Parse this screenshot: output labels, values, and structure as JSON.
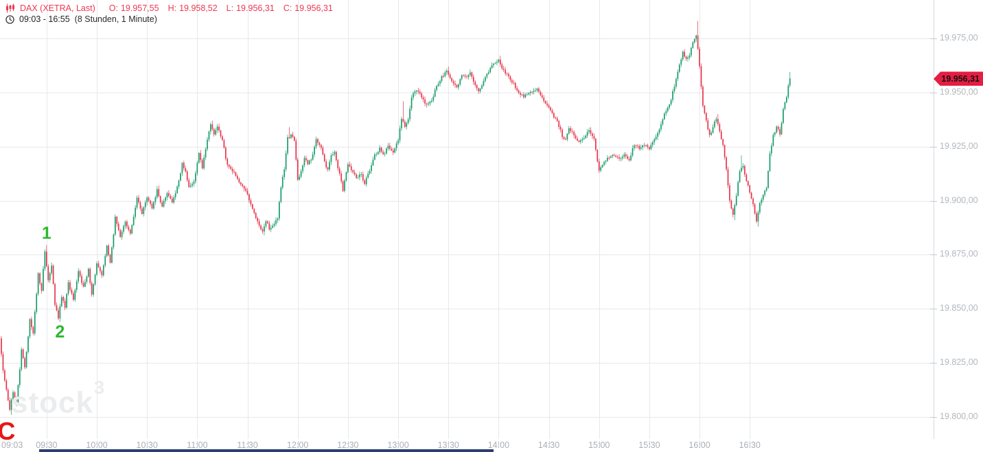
{
  "header": {
    "symbol": "DAX (XETRA, Last)",
    "ohlc": [
      {
        "label": "O:",
        "value": "19.957,55"
      },
      {
        "label": "H:",
        "value": "19.958,52"
      },
      {
        "label": "L:",
        "value": "19.956,31"
      },
      {
        "label": "C:",
        "value": "19.956,31"
      }
    ],
    "time_range": "09:03 - 16:55",
    "interval": "(8 Stunden, 1 Minute)",
    "accent_color": "#ec3850"
  },
  "price_tag": {
    "value": "19.956,31",
    "color": "#e51d42"
  },
  "watermark": {
    "text": "stock",
    "sup": "3"
  },
  "colors": {
    "up": "#169b68",
    "down": "#e73349",
    "grid": "#e6e8eb",
    "axis_line": "#d6d9dc",
    "tick": "#c4c8cd"
  },
  "chart_data": {
    "type": "candlestick",
    "title": "DAX (XETRA, Last) 1-Minute intraday",
    "interval_minutes": 1,
    "session_start": "09:03",
    "session_end": "16:55",
    "last_price": 19956.31,
    "last_ohlc": {
      "open": 19957.55,
      "high": 19958.52,
      "low": 19956.31,
      "close": 19956.31
    },
    "y_axis": {
      "min": 19800,
      "max": 19975,
      "tick_step": 25,
      "labels": [
        "19.975,00",
        "19.950,00",
        "19.925,00",
        "19.900,00",
        "19.875,00",
        "19.850,00",
        "19.825,00",
        "19.800,00"
      ],
      "label_values": [
        19975,
        19950,
        19925,
        19900,
        19875,
        19850,
        19825,
        19800
      ]
    },
    "x_axis": {
      "labels": [
        {
          "text": "09:03",
          "t": 0
        },
        {
          "text": "09:30",
          "t": 27
        },
        {
          "text": "10:00",
          "t": 57
        },
        {
          "text": "10:30",
          "t": 87
        },
        {
          "text": "11:00",
          "t": 117
        },
        {
          "text": "11:30",
          "t": 147
        },
        {
          "text": "12:00",
          "t": 177
        },
        {
          "text": "12:30",
          "t": 207
        },
        {
          "text": "13:00",
          "t": 237
        },
        {
          "text": "13:30",
          "t": 267
        },
        {
          "text": "14:00",
          "t": 297
        },
        {
          "text": "14:30",
          "t": 327
        },
        {
          "text": "15:00",
          "t": 357
        },
        {
          "text": "15:30",
          "t": 387
        },
        {
          "text": "16:00",
          "t": 417
        },
        {
          "text": "16:30",
          "t": 447
        }
      ],
      "gridline_ts": [
        27,
        57,
        87,
        117,
        147,
        177,
        207,
        237,
        267,
        297,
        327,
        357,
        387,
        417,
        447
      ]
    },
    "price_path_waypoints": [
      [
        0,
        19836
      ],
      [
        2,
        19822
      ],
      [
        4,
        19812
      ],
      [
        6,
        19803
      ],
      [
        8,
        19812
      ],
      [
        10,
        19806
      ],
      [
        13,
        19831
      ],
      [
        15,
        19823
      ],
      [
        18,
        19845
      ],
      [
        20,
        19839
      ],
      [
        23,
        19866
      ],
      [
        25,
        19859
      ],
      [
        27,
        19877
      ],
      [
        29,
        19863
      ],
      [
        31,
        19870
      ],
      [
        33,
        19852
      ],
      [
        35,
        19846
      ],
      [
        37,
        19856
      ],
      [
        39,
        19851
      ],
      [
        41,
        19862
      ],
      [
        44,
        19854
      ],
      [
        47,
        19867
      ],
      [
        50,
        19860
      ],
      [
        53,
        19868
      ],
      [
        55,
        19857
      ],
      [
        58,
        19871
      ],
      [
        61,
        19866
      ],
      [
        64,
        19879
      ],
      [
        66,
        19871
      ],
      [
        69,
        19892
      ],
      [
        72,
        19883
      ],
      [
        75,
        19890
      ],
      [
        78,
        19885
      ],
      [
        82,
        19901
      ],
      [
        85,
        19894
      ],
      [
        88,
        19902
      ],
      [
        91,
        19896
      ],
      [
        94,
        19905
      ],
      [
        97,
        19897
      ],
      [
        100,
        19904
      ],
      [
        103,
        19899
      ],
      [
        106,
        19906
      ],
      [
        109,
        19917
      ],
      [
        111,
        19913
      ],
      [
        113,
        19906
      ],
      [
        116,
        19909
      ],
      [
        119,
        19922
      ],
      [
        121,
        19915
      ],
      [
        124,
        19928
      ],
      [
        126,
        19935
      ],
      [
        128,
        19930
      ],
      [
        130,
        19934
      ],
      [
        133,
        19928
      ],
      [
        136,
        19916
      ],
      [
        139,
        19914
      ],
      [
        142,
        19910
      ],
      [
        145,
        19907
      ],
      [
        148,
        19903
      ],
      [
        151,
        19896
      ],
      [
        154,
        19890
      ],
      [
        157,
        19886
      ],
      [
        159,
        19891
      ],
      [
        161,
        19887
      ],
      [
        164,
        19889
      ],
      [
        166,
        19892
      ],
      [
        168,
        19906
      ],
      [
        170,
        19915
      ],
      [
        172,
        19929
      ],
      [
        174,
        19930
      ],
      [
        176,
        19928
      ],
      [
        178,
        19910
      ],
      [
        180,
        19913
      ],
      [
        182,
        19920
      ],
      [
        184,
        19917
      ],
      [
        186,
        19919
      ],
      [
        189,
        19928
      ],
      [
        192,
        19924
      ],
      [
        194,
        19918
      ],
      [
        196,
        19914
      ],
      [
        198,
        19921
      ],
      [
        200,
        19922
      ],
      [
        203,
        19912
      ],
      [
        205,
        19905
      ],
      [
        208,
        19917
      ],
      [
        210,
        19914
      ],
      [
        213,
        19911
      ],
      [
        216,
        19912
      ],
      [
        218,
        19908
      ],
      [
        221,
        19914
      ],
      [
        224,
        19921
      ],
      [
        227,
        19924
      ],
      [
        229,
        19921
      ],
      [
        232,
        19925
      ],
      [
        235,
        19922
      ],
      [
        238,
        19928
      ],
      [
        240,
        19938
      ],
      [
        242,
        19934
      ],
      [
        244,
        19937
      ],
      [
        246,
        19948
      ],
      [
        249,
        19951
      ],
      [
        252,
        19948
      ],
      [
        255,
        19944
      ],
      [
        258,
        19946
      ],
      [
        261,
        19953
      ],
      [
        264,
        19957
      ],
      [
        267,
        19960
      ],
      [
        270,
        19955
      ],
      [
        273,
        19952
      ],
      [
        276,
        19958
      ],
      [
        279,
        19957
      ],
      [
        281,
        19959
      ],
      [
        284,
        19953
      ],
      [
        286,
        19951
      ],
      [
        289,
        19955
      ],
      [
        292,
        19960
      ],
      [
        295,
        19963
      ],
      [
        298,
        19965
      ],
      [
        301,
        19960
      ],
      [
        304,
        19957
      ],
      [
        307,
        19954
      ],
      [
        310,
        19950
      ],
      [
        313,
        19948
      ],
      [
        316,
        19950
      ],
      [
        319,
        19951
      ],
      [
        321,
        19952
      ],
      [
        324,
        19948
      ],
      [
        327,
        19944
      ],
      [
        330,
        19940
      ],
      [
        333,
        19937
      ],
      [
        336,
        19930
      ],
      [
        338,
        19928
      ],
      [
        340,
        19934
      ],
      [
        343,
        19930
      ],
      [
        346,
        19927
      ],
      [
        349,
        19929
      ],
      [
        352,
        19933
      ],
      [
        355,
        19928
      ],
      [
        358,
        19914
      ],
      [
        361,
        19918
      ],
      [
        364,
        19920
      ],
      [
        367,
        19921
      ],
      [
        370,
        19919
      ],
      [
        373,
        19921
      ],
      [
        376,
        19919
      ],
      [
        379,
        19926
      ],
      [
        382,
        19924
      ],
      [
        385,
        19926
      ],
      [
        388,
        19924
      ],
      [
        391,
        19928
      ],
      [
        394,
        19933
      ],
      [
        397,
        19940
      ],
      [
        400,
        19944
      ],
      [
        402,
        19950
      ],
      [
        405,
        19959
      ],
      [
        408,
        19969
      ],
      [
        410,
        19965
      ],
      [
        412,
        19967
      ],
      [
        414,
        19973
      ],
      [
        416,
        19977
      ],
      [
        418,
        19962
      ],
      [
        420,
        19944
      ],
      [
        422,
        19937
      ],
      [
        424,
        19930
      ],
      [
        426,
        19934
      ],
      [
        428,
        19938
      ],
      [
        430,
        19932
      ],
      [
        432,
        19926
      ],
      [
        434,
        19914
      ],
      [
        436,
        19900
      ],
      [
        438,
        19893
      ],
      [
        440,
        19902
      ],
      [
        442,
        19914
      ],
      [
        444,
        19916
      ],
      [
        446,
        19909
      ],
      [
        448,
        19904
      ],
      [
        450,
        19898
      ],
      [
        452,
        19890
      ],
      [
        454,
        19899
      ],
      [
        456,
        19903
      ],
      [
        458,
        19906
      ],
      [
        460,
        19922
      ],
      [
        462,
        19930
      ],
      [
        464,
        19934
      ],
      [
        466,
        19931
      ],
      [
        468,
        19942
      ],
      [
        470,
        19948
      ],
      [
        471,
        19953
      ],
      [
        472,
        19956.31
      ]
    ],
    "wick_events": [
      {
        "t": 6,
        "low": 19801
      },
      {
        "t": 27,
        "high": 19879.5
      },
      {
        "t": 35,
        "low": 19844
      },
      {
        "t": 94,
        "high": 19907
      },
      {
        "t": 126,
        "high": 19937
      },
      {
        "t": 157,
        "low": 19884
      },
      {
        "t": 172,
        "high": 19934
      },
      {
        "t": 240,
        "high": 19946
      },
      {
        "t": 267,
        "high": 19962
      },
      {
        "t": 298,
        "high": 19967
      },
      {
        "t": 416,
        "high": 19983
      },
      {
        "t": 428,
        "high": 19940
      },
      {
        "t": 438,
        "low": 19891
      },
      {
        "t": 442,
        "high": 19921
      },
      {
        "t": 452,
        "low": 19888
      },
      {
        "t": 471,
        "high": 19959.5
      }
    ],
    "annotations": [
      {
        "text": "1",
        "t": 27,
        "price": 19879,
        "placement": "above",
        "color": "#2eb82e",
        "size": 25
      },
      {
        "text": "2",
        "t": 35,
        "price": 19845,
        "placement": "below",
        "color": "#2eb82e",
        "size": 25
      },
      {
        "text": "C",
        "t": 3,
        "price": 19801,
        "placement": "below",
        "color": "#e81717",
        "size": 36
      }
    ]
  }
}
